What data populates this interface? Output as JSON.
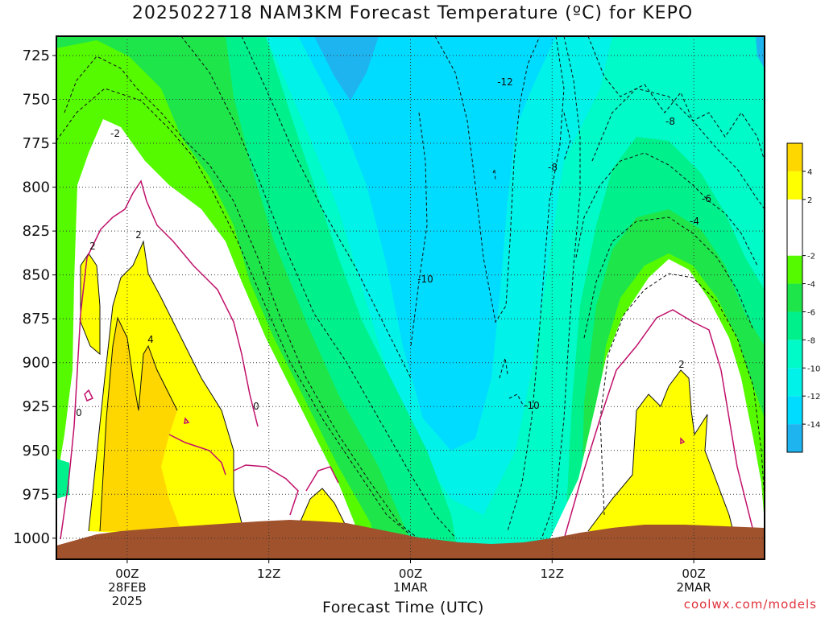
{
  "title": "2025022718 NAM3KM Forecast Temperature (ºC) for KEPO",
  "watermark": "coolwx.com/models",
  "chart_data": {
    "type": "heatmap",
    "title": "2025022718 NAM3KM Forecast Temperature (ºC) for KEPO",
    "xlabel": "Forecast Time (UTC)",
    "ylabel": "",
    "x_ticks": [
      {
        "lines": [
          "00Z",
          "28FEB",
          "2025"
        ],
        "hour": 6
      },
      {
        "lines": [
          "12Z"
        ],
        "hour": 18
      },
      {
        "lines": [
          "00Z",
          "1MAR"
        ],
        "hour": 30
      },
      {
        "lines": [
          "12Z"
        ],
        "hour": 42
      },
      {
        "lines": [
          "00Z",
          "2MAR"
        ],
        "hour": 54
      }
    ],
    "xlim": [
      0,
      60
    ],
    "y_ticks": [
      725,
      750,
      775,
      800,
      825,
      850,
      875,
      900,
      925,
      950,
      975,
      1000
    ],
    "ylim": [
      1012,
      714
    ],
    "colorbar": {
      "bands": [
        {
          "lo": -16,
          "hi": -14,
          "color": "#1eb4f0"
        },
        {
          "lo": -14,
          "hi": -12,
          "color": "#00dcff"
        },
        {
          "lo": -12,
          "hi": -10,
          "color": "#00f2e8"
        },
        {
          "lo": -10,
          "hi": -8,
          "color": "#00fac8"
        },
        {
          "lo": -8,
          "hi": -6,
          "color": "#00f08c"
        },
        {
          "lo": -6,
          "hi": -4,
          "color": "#1ee64a"
        },
        {
          "lo": -4,
          "hi": -2,
          "color": "#55fa00"
        },
        {
          "lo": -2,
          "hi": 2,
          "color": "#ffffff"
        },
        {
          "lo": 2,
          "hi": 4,
          "color": "#ffff00"
        },
        {
          "lo": 4,
          "hi": 6,
          "color": "#ffd700"
        }
      ],
      "labels": [
        "4",
        "2",
        "-2",
        "-4",
        "-6",
        "-8",
        "-10",
        "-12",
        "-14"
      ]
    },
    "contour_labels": [
      "-2",
      "2",
      "2",
      "4",
      "0",
      "0",
      "-12",
      "-8",
      "-8",
      "-6",
      "-4",
      "-10",
      "-10",
      "2"
    ],
    "terrain_color": "#a0522d"
  }
}
